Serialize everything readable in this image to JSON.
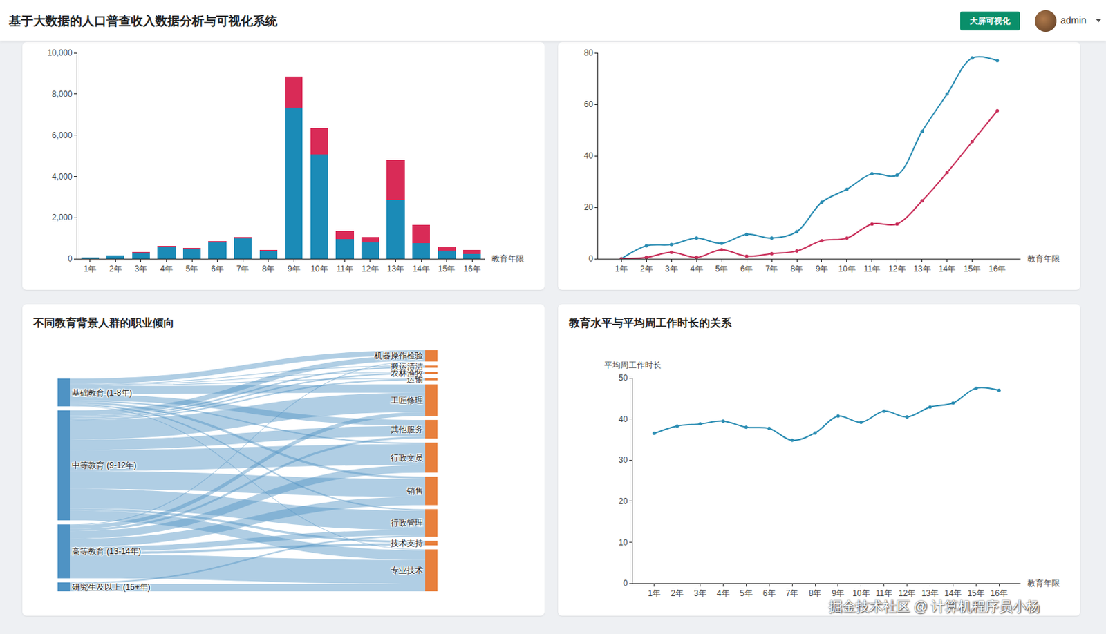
{
  "header": {
    "title": "基于大数据的人口普查收入数据分析与可视化系统",
    "button": "大屏可视化",
    "user": "admin"
  },
  "watermark": "掘金技术社区 @ 计算机程序员小杨",
  "chart_data": [
    {
      "type": "bar",
      "stacked": true,
      "grid": false,
      "categories": [
        "1年",
        "2年",
        "3年",
        "4年",
        "5年",
        "6年",
        "7年",
        "8年",
        "9年",
        "10年",
        "11年",
        "12年",
        "13年",
        "14年",
        "15年",
        "16年"
      ],
      "xlabel": "教育年限",
      "ylim": [
        0,
        10000
      ],
      "yticks": [
        0,
        {
          "value": 2000,
          "label": "2,000"
        },
        {
          "value": 4000,
          "label": "4,000"
        },
        {
          "value": 6000,
          "label": "6,000"
        },
        {
          "value": 8000,
          "label": "8,000"
        },
        {
          "value": 10000,
          "label": "10,000"
        }
      ],
      "series": [
        {
          "color": "#1b8bb7",
          "values": [
            50,
            160,
            300,
            580,
            480,
            780,
            1000,
            370,
            7350,
            5050,
            960,
            780,
            2850,
            750,
            380,
            230
          ]
        },
        {
          "color": "#d92b57",
          "values": [
            0,
            10,
            30,
            60,
            40,
            80,
            60,
            50,
            1500,
            1300,
            380,
            280,
            1950,
            900,
            200,
            190
          ]
        }
      ]
    },
    {
      "type": "line",
      "grid": false,
      "marker": "circle",
      "line_style": "smooth",
      "categories": [
        "1年",
        "2年",
        "3年",
        "4年",
        "5年",
        "6年",
        "7年",
        "8年",
        "9年",
        "10年",
        "11年",
        "12年",
        "13年",
        "14年",
        "15年",
        "16年"
      ],
      "xlabel": "教育年限",
      "ylim": [
        0,
        80
      ],
      "yticks": [
        0,
        20,
        40,
        60,
        80
      ],
      "series": [
        {
          "color": "#2b8db3",
          "values": [
            0,
            5,
            5.5,
            8,
            6,
            9.5,
            8,
            10.5,
            22,
            27,
            33,
            32.5,
            49.5,
            64,
            78,
            77
          ]
        },
        {
          "color": "#c9305b",
          "values": [
            0,
            0.5,
            2.5,
            0.5,
            3.5,
            1,
            2,
            3,
            7,
            8,
            13.5,
            13.5,
            22.5,
            33.5,
            45.5,
            57.5
          ]
        }
      ]
    },
    {
      "type": "sankey",
      "title": "不同教育背景人群的职业倾向",
      "nodes": [
        {
          "label": "基础教育 (1-8年)",
          "color": "#4f93c4"
        },
        {
          "label": "中等教育 (9-12年)",
          "color": "#4f93c4"
        },
        {
          "label": "高等教育 (13-14年)",
          "color": "#4f93c4"
        },
        {
          "label": "研究生及以上 (15+年)",
          "color": "#4f93c4"
        },
        {
          "label": "搬运清洁",
          "color": "#e8803d"
        },
        {
          "label": "农林渔牧",
          "color": "#e8803d"
        },
        {
          "label": "运输",
          "color": "#e8803d"
        },
        {
          "label": "其他服务",
          "color": "#e8803d"
        },
        {
          "label": "机器操作检验",
          "color": "#e8803d"
        },
        {
          "label": "工匠修理",
          "color": "#e8803d"
        },
        {
          "label": "行政文员",
          "color": "#e8803d"
        },
        {
          "label": "销售",
          "color": "#e8803d"
        },
        {
          "label": "技术支持",
          "color": "#e8803d"
        },
        {
          "label": "专业技术",
          "color": "#e8803d"
        },
        {
          "label": "行政管理",
          "color": "#e8803d"
        }
      ],
      "links": [
        {
          "source": "基础教育 (1-8年)",
          "target": "搬运清洁",
          "value": 1
        },
        {
          "source": "基础教育 (1-8年)",
          "target": "农林渔牧",
          "value": 1
        },
        {
          "source": "基础教育 (1-8年)",
          "target": "运输",
          "value": 1
        },
        {
          "source": "基础教育 (1-8年)",
          "target": "其他服务",
          "value": 8
        },
        {
          "source": "基础教育 (1-8年)",
          "target": "机器操作检验",
          "value": 7
        },
        {
          "source": "基础教育 (1-8年)",
          "target": "工匠修理",
          "value": 11
        },
        {
          "source": "基础教育 (1-8年)",
          "target": "行政文员",
          "value": 2
        },
        {
          "source": "基础教育 (1-8年)",
          "target": "销售",
          "value": 3
        },
        {
          "source": "基础教育 (1-8年)",
          "target": "专业技术",
          "value": 1
        },
        {
          "source": "基础教育 (1-8年)",
          "target": "行政管理",
          "value": 2
        },
        {
          "source": "中等教育 (9-12年)",
          "target": "搬运清洁",
          "value": 2
        },
        {
          "source": "中等教育 (9-12年)",
          "target": "农林渔牧",
          "value": 2
        },
        {
          "source": "中等教育 (9-12年)",
          "target": "运输",
          "value": 2
        },
        {
          "source": "中等教育 (9-12年)",
          "target": "其他服务",
          "value": 14
        },
        {
          "source": "中等教育 (9-12年)",
          "target": "机器操作检验",
          "value": 7
        },
        {
          "source": "中等教育 (9-12年)",
          "target": "工匠修理",
          "value": 26
        },
        {
          "source": "中等教育 (9-12年)",
          "target": "行政文员",
          "value": 28
        },
        {
          "source": "中等教育 (9-12年)",
          "target": "销售",
          "value": 24
        },
        {
          "source": "中等教育 (9-12年)",
          "target": "技术支持",
          "value": 3
        },
        {
          "source": "中等教育 (9-12年)",
          "target": "专业技术",
          "value": 13
        },
        {
          "source": "中等教育 (9-12年)",
          "target": "行政管理",
          "value": 26
        },
        {
          "source": "高等教育 (13-14年)",
          "target": "其他服务",
          "value": 3
        },
        {
          "source": "高等教育 (13-14年)",
          "target": "机器操作检验",
          "value": 1
        },
        {
          "source": "高等教育 (13-14年)",
          "target": "工匠修理",
          "value": 5
        },
        {
          "source": "高等教育 (13-14年)",
          "target": "行政文员",
          "value": 10
        },
        {
          "source": "高等教育 (13-14年)",
          "target": "销售",
          "value": 11
        },
        {
          "source": "高等教育 (13-14年)",
          "target": "技术支持",
          "value": 3
        },
        {
          "source": "高等教育 (13-14年)",
          "target": "专业技术",
          "value": 32
        },
        {
          "source": "高等教育 (13-14年)",
          "target": "行政管理",
          "value": 7
        },
        {
          "source": "研究生及以上 (15+年)",
          "target": "专业技术",
          "value": 10
        },
        {
          "source": "研究生及以上 (15+年)",
          "target": "行政管理",
          "value": 2
        }
      ]
    },
    {
      "type": "line",
      "title": "教育水平与平均周工作时长的关系",
      "grid": false,
      "marker": "circle",
      "line_style": "smooth",
      "categories": [
        "1年",
        "2年",
        "3年",
        "4年",
        "5年",
        "6年",
        "7年",
        "8年",
        "9年",
        "10年",
        "11年",
        "12年",
        "13年",
        "14年",
        "15年",
        "16年"
      ],
      "xlabel": "教育年限",
      "ylabel": "平均周工作时长",
      "ylim": [
        0,
        50
      ],
      "yticks": [
        0,
        10,
        20,
        30,
        40,
        50
      ],
      "series": [
        {
          "color": "#2b8db3",
          "values": [
            36.5,
            38.3,
            38.8,
            39.5,
            38,
            37.7,
            34.8,
            36.6,
            40.7,
            39.2,
            41.9,
            40.5,
            42.9,
            43.9,
            47.5,
            47
          ]
        }
      ]
    }
  ]
}
